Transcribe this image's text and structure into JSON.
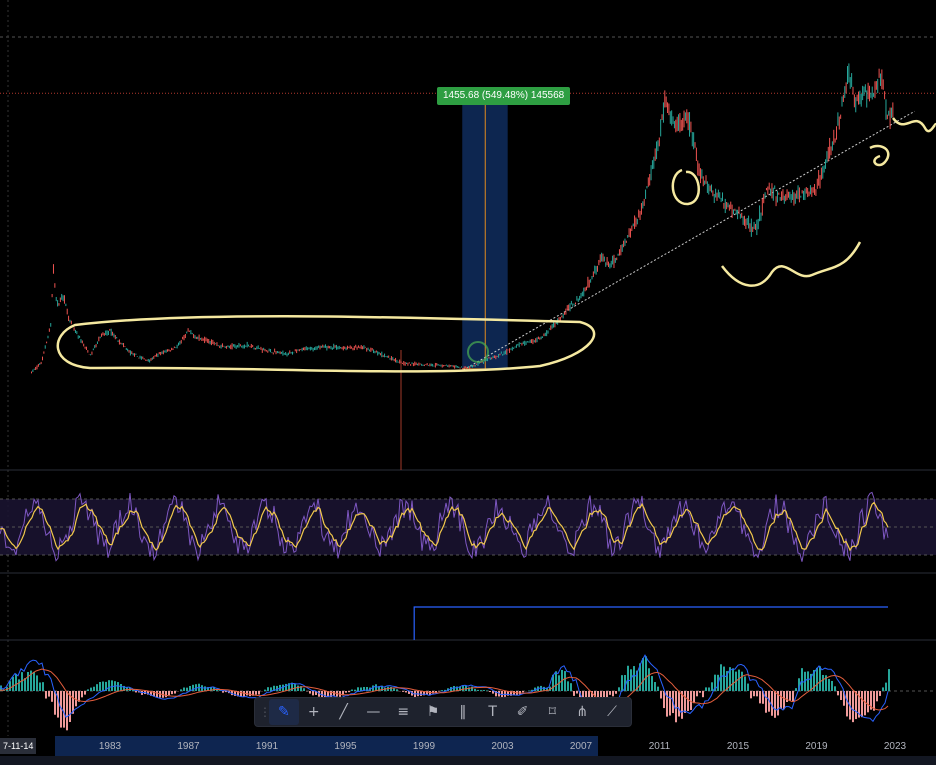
{
  "measure_label": "1455.68 (549.48%) 145568",
  "cursor_date": "7-11-14",
  "axis_ticks": [
    "1983",
    "1987",
    "1991",
    "1995",
    "1999",
    "2003",
    "2007",
    "2011",
    "2015",
    "2019",
    "2023"
  ],
  "axis_tick_years": [
    1983,
    1987,
    1991,
    1995,
    1999,
    2003,
    2007,
    2011,
    2015,
    2019,
    2023
  ],
  "toolbar": [
    {
      "icon": "brush-icon",
      "glyph": "✎",
      "active": true
    },
    {
      "icon": "crosshair-icon",
      "glyph": "+",
      "active": false
    },
    {
      "icon": "trend-line-icon",
      "glyph": "╱",
      "active": false
    },
    {
      "icon": "horizontal-ray-icon",
      "glyph": "—",
      "active": false
    },
    {
      "icon": "fib-icon",
      "glyph": "≡",
      "active": false
    },
    {
      "icon": "flag-icon",
      "glyph": "⚑",
      "active": false
    },
    {
      "icon": "bars-icon",
      "glyph": "‖",
      "active": false
    },
    {
      "icon": "text-icon",
      "glyph": "T",
      "active": false
    },
    {
      "icon": "pen-icon",
      "glyph": "✐",
      "active": false
    },
    {
      "icon": "callout-icon",
      "glyph": "⌑",
      "active": false
    },
    {
      "icon": "pattern-icon",
      "glyph": "⋔",
      "active": false
    },
    {
      "icon": "ruler-icon",
      "glyph": "⟋",
      "active": false
    }
  ],
  "chart_data": {
    "type": "line",
    "x_range": [
      1979,
      2024
    ],
    "price_series": {
      "x": [
        1979,
        1979.5,
        1980,
        1980.1,
        1980.3,
        1980.6,
        1981,
        1981.5,
        1982,
        1982.5,
        1983,
        1983.5,
        1984,
        1984.5,
        1985,
        1985.5,
        1986,
        1986.5,
        1987,
        1987.5,
        1988,
        1988.5,
        1989,
        1990,
        1991,
        1992,
        1993,
        1994,
        1995,
        1996,
        1997,
        1998,
        1999,
        2000,
        2001,
        2001.5,
        2002,
        2003,
        2004,
        2005,
        2006,
        2006.5,
        2007,
        2007.5,
        2008,
        2008.5,
        2009,
        2009.5,
        2010,
        2010.5,
        2011,
        2011.3,
        2011.7,
        2012,
        2012.5,
        2013,
        2013.5,
        2014,
        2015,
        2015.9,
        2016.5,
        2017,
        2018,
        2019,
        2019.5,
        2020,
        2020.6,
        2021,
        2021.5,
        2022,
        2022.3,
        2022.6,
        2022.9
      ],
      "y": [
        245,
        300,
        520,
        850,
        620,
        690,
        520,
        430,
        340,
        450,
        480,
        420,
        360,
        330,
        310,
        350,
        370,
        400,
        480,
        440,
        430,
        400,
        390,
        400,
        370,
        350,
        380,
        390,
        385,
        385,
        340,
        295,
        290,
        285,
        270,
        280,
        305,
        350,
        410,
        440,
        560,
        630,
        680,
        780,
        900,
        850,
        930,
        1050,
        1150,
        1350,
        1600,
        1800,
        1650,
        1650,
        1700,
        1400,
        1300,
        1250,
        1150,
        1060,
        1300,
        1250,
        1250,
        1300,
        1450,
        1600,
        1950,
        1800,
        1850,
        1850,
        1950,
        1700,
        1750
      ]
    },
    "support_line": {
      "x": [
        2001,
        2024
      ],
      "y": [
        270,
        1720
      ]
    },
    "reference_level": 1840,
    "measurement": {
      "x0": 2001,
      "x1": 2002.5,
      "y0": 265,
      "y1": 1840,
      "label": "1455.68 (549.48%) 145568"
    },
    "rsi_levels": [
      30,
      50,
      70
    ],
    "highlight_window": {
      "x0": 1998.5,
      "x1": 2023
    }
  }
}
